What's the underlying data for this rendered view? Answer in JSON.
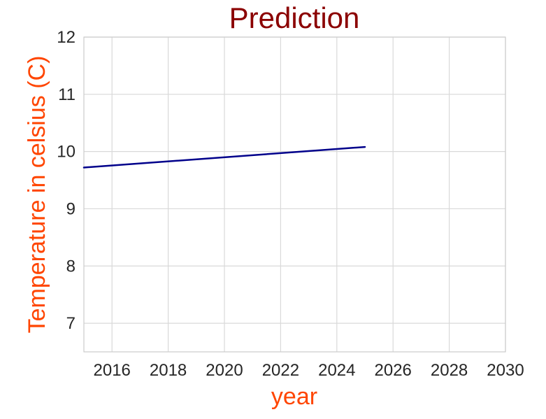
{
  "colors": {
    "title": "#8b0000",
    "axis_label": "#ff4500",
    "line": "#00008b",
    "grid": "#d9d9d9",
    "frame": "#cccccc"
  },
  "chart_data": {
    "type": "line",
    "title": "Prediction",
    "xlabel": "year",
    "ylabel": "Temperature in celsius (C)",
    "xlim": [
      2015,
      2030
    ],
    "ylim": [
      6.5,
      12
    ],
    "xticks": [
      "2016",
      "2018",
      "2020",
      "2022",
      "2024",
      "2026",
      "2028",
      "2030"
    ],
    "yticks": [
      "7",
      "8",
      "9",
      "10",
      "11",
      "12"
    ],
    "grid": true,
    "series": [
      {
        "x": [
          2015,
          2025
        ],
        "y": [
          9.72,
          10.08
        ]
      }
    ]
  }
}
